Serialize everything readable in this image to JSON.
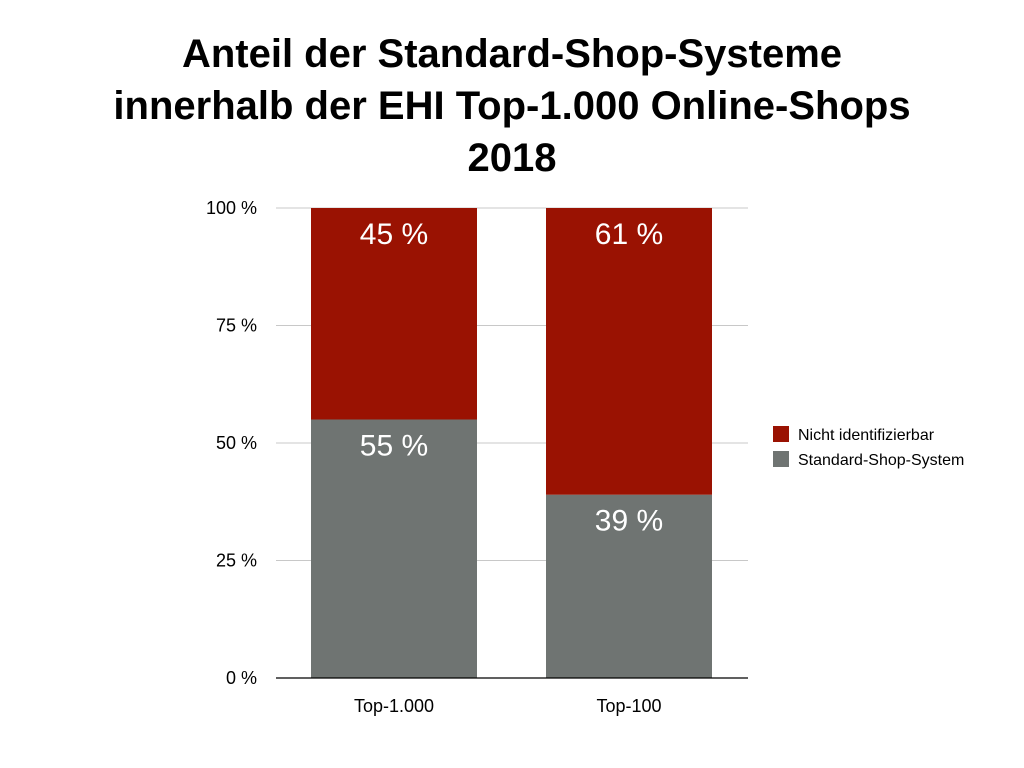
{
  "chart_data": {
    "type": "bar",
    "stacked": true,
    "title_lines": [
      "Anteil der Standard-Shop-Systeme",
      "innerhalb der EHI Top-1.000 Online-Shops",
      "2018"
    ],
    "categories": [
      "Top-1.000",
      "Top-100"
    ],
    "series": [
      {
        "name": "Standard-Shop-System",
        "values": [
          55,
          39
        ],
        "labels": [
          "55 %",
          "39 %"
        ],
        "color": "#6f7472"
      },
      {
        "name": "Nicht identifizierbar",
        "values": [
          45,
          61
        ],
        "labels": [
          "45 %",
          "61 %"
        ],
        "color": "#9a1202"
      }
    ],
    "ylim": [
      0,
      100
    ],
    "yticks": [
      0,
      25,
      50,
      75,
      100
    ],
    "ytick_labels": [
      "0 %",
      "25 %",
      "50 %",
      "75 %",
      "100 %"
    ],
    "grid": true,
    "legend_position": "right",
    "legend_order": [
      "Nicht identifizierbar",
      "Standard-Shop-System"
    ]
  }
}
